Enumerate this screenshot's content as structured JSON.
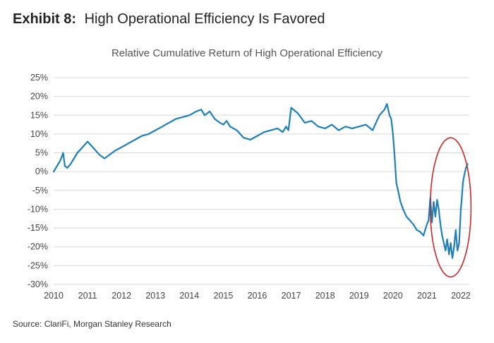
{
  "header": {
    "exhibit_number": "Exhibit 8:",
    "exhibit_title": "High Operational Efficiency Is Favored"
  },
  "source": "Source: ClariFi, Morgan Stanley Research",
  "colors": {
    "line": "#1f7fb6",
    "grid": "#d9d9d9",
    "highlight_ellipse": "#c62828"
  },
  "chart_data": {
    "type": "line",
    "title": "Relative Cumulative Return of High Operational Efficiency",
    "xlabel": "",
    "ylabel": "",
    "xlim": [
      2010.0,
      2022.25
    ],
    "ylim": [
      -30,
      25
    ],
    "y_ticks": [
      "25%",
      "20%",
      "15%",
      "10%",
      "5%",
      "0%",
      "-5%",
      "-10%",
      "-15%",
      "-20%",
      "-25%",
      "-30%"
    ],
    "x_ticks": [
      "2010",
      "2011",
      "2012",
      "2013",
      "2014",
      "2015",
      "2016",
      "2017",
      "2018",
      "2019",
      "2020",
      "2021",
      "2022"
    ],
    "grid": "horizontal",
    "series": [
      {
        "x": [
          2010.0,
          2010.1,
          2010.2,
          2010.28,
          2010.33,
          2010.4,
          2010.5,
          2010.6,
          2010.7,
          2010.85,
          2011.0,
          2011.1,
          2011.2,
          2011.35,
          2011.5,
          2011.65,
          2011.8,
          2012.0,
          2012.2,
          2012.4,
          2012.6,
          2012.8,
          2013.0,
          2013.2,
          2013.4,
          2013.6,
          2013.8,
          2014.0,
          2014.2,
          2014.35,
          2014.45,
          2014.6,
          2014.75,
          2014.9,
          2015.0,
          2015.1,
          2015.2,
          2015.4,
          2015.6,
          2015.8,
          2016.0,
          2016.2,
          2016.4,
          2016.6,
          2016.75,
          2016.85,
          2016.92,
          2017.0,
          2017.2,
          2017.4,
          2017.6,
          2017.8,
          2018.0,
          2018.2,
          2018.4,
          2018.6,
          2018.8,
          2019.0,
          2019.2,
          2019.4,
          2019.6,
          2019.75,
          2019.82,
          2019.9,
          2019.95,
          2020.0,
          2020.05,
          2020.1,
          2020.15,
          2020.22,
          2020.3,
          2020.4,
          2020.5,
          2020.6,
          2020.7,
          2020.8,
          2020.9,
          2021.0,
          2021.05,
          2021.1,
          2021.15,
          2021.2,
          2021.25,
          2021.3,
          2021.35,
          2021.4,
          2021.45,
          2021.5,
          2021.55,
          2021.6,
          2021.65,
          2021.7,
          2021.75,
          2021.8,
          2021.85,
          2021.9,
          2021.95,
          2022.0,
          2022.03,
          2022.06,
          2022.1,
          2022.15,
          2022.2
        ],
        "values": [
          0.0,
          1.5,
          3.0,
          5.0,
          1.5,
          1.0,
          2.0,
          3.5,
          5.0,
          6.5,
          8.0,
          7.0,
          6.0,
          4.5,
          3.5,
          4.5,
          5.5,
          6.5,
          7.5,
          8.5,
          9.5,
          10.0,
          11.0,
          12.0,
          13.0,
          14.0,
          14.5,
          15.0,
          16.0,
          16.5,
          15.0,
          16.0,
          14.0,
          13.0,
          12.5,
          13.5,
          12.0,
          11.0,
          9.0,
          8.5,
          9.5,
          10.5,
          11.0,
          11.5,
          10.5,
          12.0,
          11.0,
          17.0,
          15.5,
          13.0,
          13.5,
          12.0,
          11.5,
          12.5,
          11.0,
          12.0,
          11.5,
          12.0,
          12.5,
          11.0,
          15.0,
          16.5,
          18.0,
          15.0,
          14.0,
          10.0,
          4.0,
          -3.0,
          -5.0,
          -8.0,
          -10.0,
          -12.0,
          -13.0,
          -14.0,
          -15.5,
          -16.0,
          -17.0,
          -14.0,
          -13.0,
          -7.0,
          -13.5,
          -8.0,
          -12.0,
          -7.5,
          -10.0,
          -14.0,
          -17.0,
          -19.0,
          -21.0,
          -18.0,
          -22.0,
          -19.0,
          -23.0,
          -20.0,
          -15.5,
          -21.0,
          -19.0,
          -10.0,
          -7.0,
          -3.0,
          -1.0,
          1.0,
          2.0
        ]
      }
    ],
    "annotations": [
      {
        "type": "ellipse",
        "center_x": 2021.7,
        "center_y": -9.5,
        "rx_years": 0.6,
        "ry_pct": 18.5
      }
    ]
  }
}
